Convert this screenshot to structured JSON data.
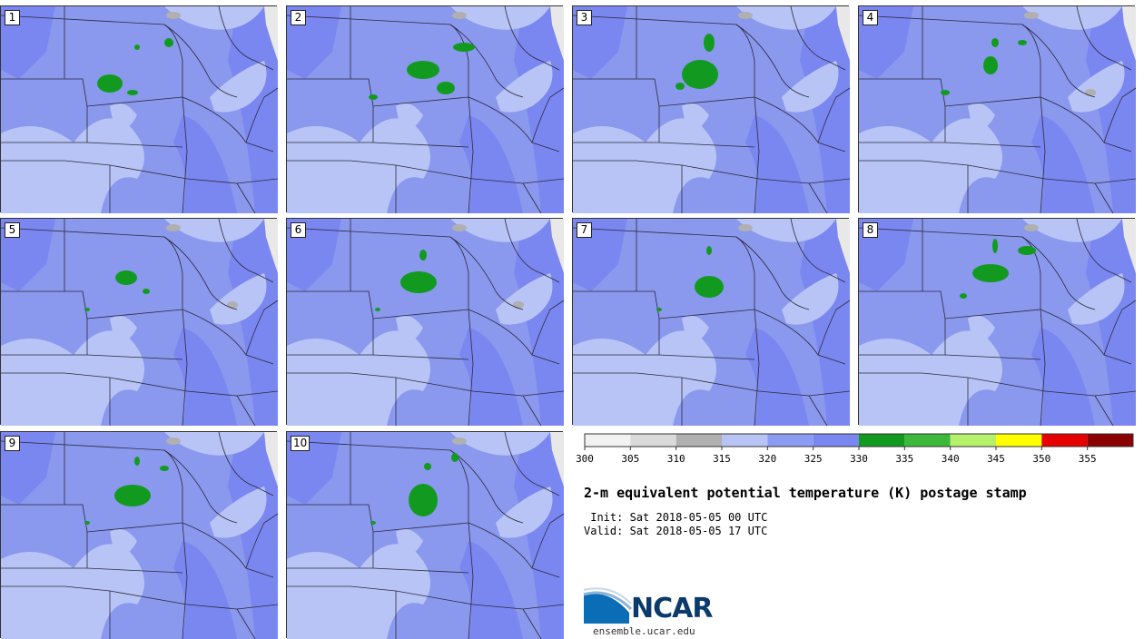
{
  "panels": [
    {
      "label": "1"
    },
    {
      "label": "2"
    },
    {
      "label": "3"
    },
    {
      "label": "4"
    },
    {
      "label": "5"
    },
    {
      "label": "6"
    },
    {
      "label": "7"
    },
    {
      "label": "8"
    },
    {
      "label": "9"
    },
    {
      "label": "10"
    }
  ],
  "colorbar": {
    "ticks": [
      "300",
      "305",
      "310",
      "315",
      "320",
      "325",
      "330",
      "335",
      "340",
      "345",
      "350",
      "355"
    ],
    "colors": [
      "#f2f2f2",
      "#dadada",
      "#b0b0b0",
      "#b8c4f6",
      "#8c9cf2",
      "#7b87f0",
      "#129a20",
      "#3cb83a",
      "#b5f16b",
      "#ffff00",
      "#e60000",
      "#8b0000"
    ]
  },
  "title": "2-m equivalent potential temperature (K) postage stamp",
  "init_line": " Init: Sat 2018-05-05 00 UTC",
  "valid_line": "Valid: Sat 2018-05-05 17 UTC",
  "logo": {
    "brand": "NCAR",
    "url": "ensemble.ucar.edu"
  },
  "map_colors": {
    "base": "#8a98ee",
    "light": "#b8c4f6",
    "dark": "#7b87f0",
    "green": "#129a20",
    "gray": "#b0b0b0",
    "lakes": "#e8e8e8"
  }
}
